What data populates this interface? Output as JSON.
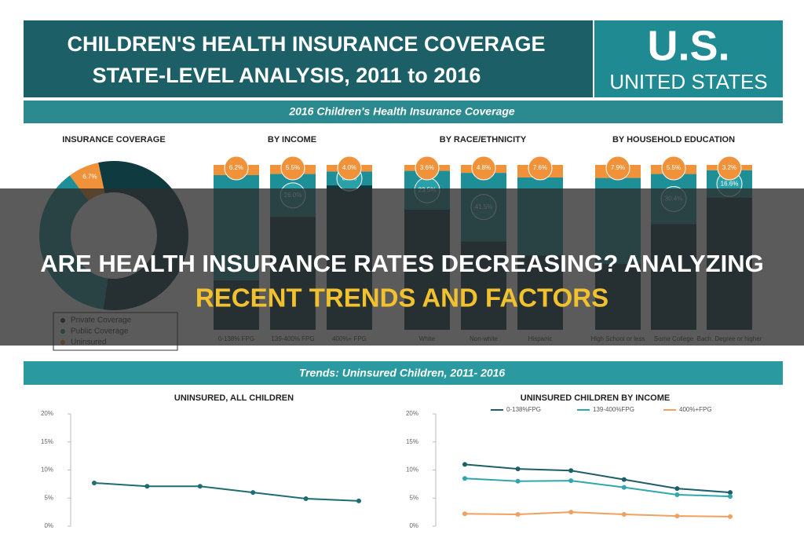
{
  "header": {
    "title_line1": "CHILDREN'S HEALTH INSURANCE COVERAGE",
    "title_line2": "STATE-LEVEL ANALYSIS, 2011 to 2016",
    "country_code": "U.S.",
    "country_name": "UNITED STATES"
  },
  "coverage_heading": "2016 Children's Health Insurance Coverage",
  "trends_heading": "Trends: Uninsured Children, 2011- 2016",
  "banner": {
    "line1": "ARE HEALTH INSURANCE RATES DECREASING? ANALYZING",
    "line2": "RECENT TRENDS AND FACTORS"
  },
  "chart_data": [
    {
      "type": "pie",
      "title": "INSURANCE COVERAGE",
      "categories": [
        "Private Coverage",
        "Public Coverage",
        "Uninsured"
      ],
      "values": [
        55.6,
        37.7,
        6.7
      ],
      "value_labels": [
        null,
        null,
        "6.7%"
      ],
      "colors": [
        "#0f3a40",
        "#1f8f97",
        "#f0923a"
      ]
    },
    {
      "type": "stacked_bar",
      "title": "BY INCOME",
      "categories": [
        "0-138% FPG",
        "139-400% FPG",
        "400%+ FPG"
      ],
      "series": [
        {
          "color": "#0f3a40",
          "values": [
            30.0,
            68.5,
            87.6
          ]
        },
        {
          "color": "#1f8f97",
          "values": [
            63.8,
            26.0,
            8.4
          ],
          "value_labels": [
            null,
            "26.0%",
            "8.4%"
          ]
        },
        {
          "color": "#f0923a",
          "values": [
            6.2,
            5.5,
            4.0
          ],
          "value_labels": [
            "6.2%",
            "5.5%",
            "4.0%"
          ]
        }
      ]
    },
    {
      "type": "stacked_bar",
      "title": "BY RACE/ETHNICITY",
      "categories": [
        "White",
        "Non-white",
        "Hispanic"
      ],
      "series": [
        {
          "color": "#0f3a40",
          "values": [
            72.9,
            53.7,
            45.0
          ]
        },
        {
          "color": "#1f8f97",
          "values": [
            23.5,
            41.5,
            47.4
          ],
          "value_labels": [
            "23.5%",
            "41.5%",
            null
          ]
        },
        {
          "color": "#f0923a",
          "values": [
            3.6,
            4.8,
            7.6
          ],
          "value_labels": [
            "3.6%",
            "4.8%",
            "7.6%"
          ]
        }
      ]
    },
    {
      "type": "stacked_bar",
      "title": "BY HOUSEHOLD EDUCATION",
      "categories": [
        "High School or less",
        "Some College",
        "Bach. Degree or higher"
      ],
      "series": [
        {
          "color": "#0f3a40",
          "values": [
            40.0,
            64.1,
            80.2
          ]
        },
        {
          "color": "#1f8f97",
          "values": [
            52.1,
            30.4,
            16.6
          ],
          "value_labels": [
            null,
            "30.4%",
            "16.6%"
          ]
        },
        {
          "color": "#f0923a",
          "values": [
            7.9,
            5.5,
            3.2
          ],
          "value_labels": [
            "7.9%",
            "5.5%",
            "3.2%"
          ]
        }
      ]
    },
    {
      "type": "line",
      "title": "UNINSURED, ALL CHILDREN",
      "categories": [
        null,
        null,
        null,
        null,
        null,
        null
      ],
      "series": [
        {
          "color": "#1d6e73",
          "values": [
            7.7,
            7.1,
            7.1,
            6.0,
            4.9,
            4.5
          ]
        }
      ],
      "ylim": [
        0,
        20
      ],
      "yticks": [
        {
          "value": 0,
          "label": "0%"
        },
        {
          "value": 5,
          "label": "5%"
        },
        {
          "value": 10,
          "label": "10%"
        },
        {
          "value": 15,
          "label": "15%"
        },
        {
          "value": 20,
          "label": "20%"
        }
      ]
    },
    {
      "type": "line",
      "title": "UNINSURED CHILDREN BY INCOME",
      "categories": [
        null,
        null,
        null,
        null,
        null,
        null
      ],
      "series": [
        {
          "name": "0-138%FPG",
          "color": "#1d5f66",
          "values": [
            11.0,
            10.2,
            9.9,
            8.3,
            6.7,
            6.0
          ]
        },
        {
          "name": "139-400%FPG",
          "color": "#2fa7ad",
          "values": [
            8.5,
            8.0,
            8.1,
            6.9,
            5.6,
            5.3
          ]
        },
        {
          "name": "400%+FPG",
          "color": "#f0a060",
          "values": [
            2.2,
            2.1,
            2.5,
            2.1,
            1.8,
            1.7
          ]
        }
      ],
      "ylim": [
        0,
        20
      ],
      "yticks": [
        {
          "value": 0,
          "label": "0%"
        },
        {
          "value": 5,
          "label": "5%"
        },
        {
          "value": 10,
          "label": "10%"
        },
        {
          "value": 15,
          "label": "15%"
        },
        {
          "value": 20,
          "label": "20%"
        }
      ]
    }
  ]
}
